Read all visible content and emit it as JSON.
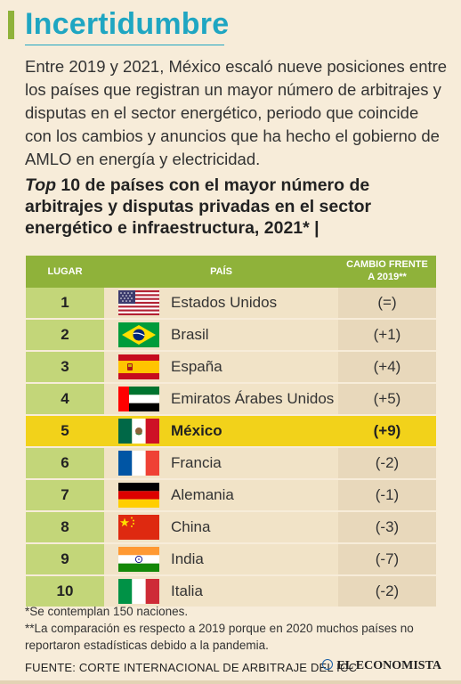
{
  "header": {
    "title": "Incertidumbre"
  },
  "intro": "Entre 2019 y 2021, México escaló nueve posiciones entre los países que registran un mayor número de arbitrajes y disputas en el sector energético, periodo que coincide con los cambios y anuncios que ha hecho el gobierno de AMLO en energía y electricidad.",
  "subtitle": {
    "italic": "Top",
    "rest": " 10 de países con el mayor número de arbitrajes y disputas privadas en el sector energético e infraestructura, 2021* |"
  },
  "table": {
    "headers": {
      "rank": "LUGAR",
      "country": "PAÍS",
      "change_line1": "CAMBIO FRENTE",
      "change_line2": "A 2019**"
    },
    "rows": [
      {
        "rank": "1",
        "country": "Estados Unidos",
        "change": "(=)",
        "flag": "usa-flag"
      },
      {
        "rank": "2",
        "country": "Brasil",
        "change": "(+1)",
        "flag": "brazil-flag"
      },
      {
        "rank": "3",
        "country": "España",
        "change": "(+4)",
        "flag": "spain-flag"
      },
      {
        "rank": "4",
        "country": "Emiratos Árabes Unidos",
        "change": "(+5)",
        "flag": "uae-flag"
      },
      {
        "rank": "5",
        "country": "México",
        "change": "(+9)",
        "flag": "mexico-flag"
      },
      {
        "rank": "6",
        "country": "Francia",
        "change": "(-2)",
        "flag": "france-flag"
      },
      {
        "rank": "7",
        "country": "Alemania",
        "change": "(-1)",
        "flag": "germany-flag"
      },
      {
        "rank": "8",
        "country": "China",
        "change": "(-3)",
        "flag": "china-flag"
      },
      {
        "rank": "9",
        "country": "India",
        "change": "(-7)",
        "flag": "india-flag"
      },
      {
        "rank": "10",
        "country": "Italia",
        "change": "(-2)",
        "flag": "italy-flag"
      }
    ]
  },
  "notes": {
    "note1": "*Se contemplan 150 naciones.",
    "note2": "**La comparación es respecto a 2019 porque en 2020 muchos países no reportaron estadísticas debido a la pandemia."
  },
  "source": "FUENTE: CORTE INTERNACIONAL DE ARBITRAJE DEL ICC",
  "logo": "EL ECONOMISTA",
  "colors": {
    "accent_green": "#8fb23a",
    "title_blue": "#1fa6c2",
    "highlight_yellow": "#f2d21a",
    "background": "#f7ecd9"
  }
}
